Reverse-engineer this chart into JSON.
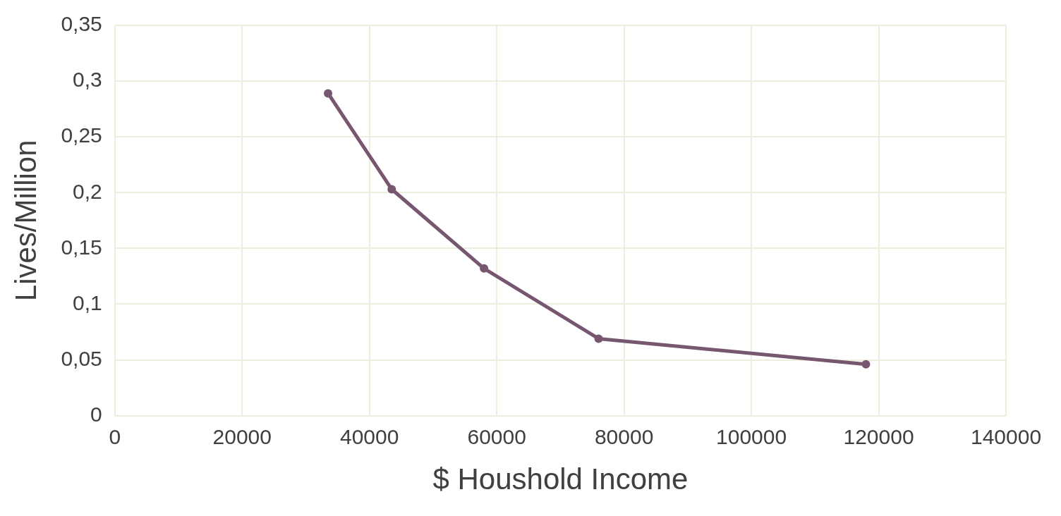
{
  "chart_data": {
    "type": "line",
    "xlabel": "$ Houshold Income",
    "ylabel": "Lives/Million",
    "x": [
      33500,
      43500,
      58000,
      76000,
      118000
    ],
    "series": [
      {
        "color": "#76576f",
        "values": [
          0.289,
          0.203,
          0.132,
          0.069,
          0.046
        ]
      }
    ],
    "xlim": [
      0,
      140000
    ],
    "xticks": [
      0,
      20000,
      40000,
      60000,
      80000,
      100000,
      120000,
      140000
    ],
    "ylim": [
      0,
      0.35
    ],
    "yticks": [
      0,
      {
        "value": 0.05,
        "label": "0,05"
      },
      {
        "value": 0.1,
        "label": "0,1"
      },
      {
        "value": 0.15,
        "label": "0,15"
      },
      {
        "value": 0.2,
        "label": "0,2"
      },
      {
        "value": 0.25,
        "label": "0,25"
      },
      {
        "value": 0.3,
        "label": "0,3"
      },
      {
        "value": 0.35,
        "label": "0,35"
      }
    ],
    "grid": true,
    "legend": false,
    "marker": "circle",
    "line_style": "solid"
  }
}
